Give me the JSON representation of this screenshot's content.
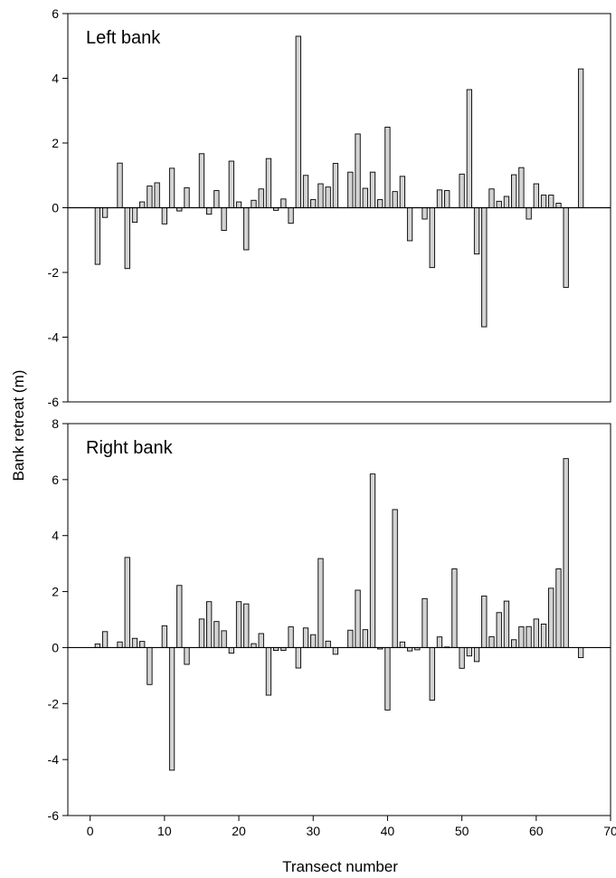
{
  "chart_data": [
    {
      "type": "bar",
      "panel_label": "Left bank",
      "ylim": [
        -6,
        6
      ],
      "yticks": [
        6,
        4,
        2,
        0,
        -2,
        -4,
        -6
      ],
      "xlim": [
        -3,
        70
      ],
      "bar_fill": "#d3d3d3",
      "bar_stroke": "#000000",
      "x": [
        1,
        2,
        4,
        5,
        6,
        7,
        8,
        9,
        10,
        11,
        12,
        13,
        15,
        16,
        17,
        18,
        19,
        20,
        21,
        22,
        23,
        24,
        25,
        26,
        27,
        28,
        29,
        30,
        31,
        32,
        33,
        35,
        36,
        37,
        38,
        39,
        40,
        41,
        42,
        43,
        45,
        46,
        47,
        48,
        50,
        51,
        52,
        53,
        54,
        55,
        56,
        57,
        58,
        59,
        60,
        61,
        62,
        63,
        64,
        66
      ],
      "values": [
        -1.75,
        -0.3,
        1.38,
        -1.88,
        -0.45,
        0.18,
        0.67,
        0.77,
        -0.5,
        1.22,
        -0.1,
        0.62,
        1.67,
        -0.2,
        0.53,
        -0.7,
        1.44,
        0.18,
        -1.3,
        0.23,
        0.58,
        1.52,
        -0.08,
        0.27,
        -0.48,
        5.3,
        1.0,
        0.25,
        0.74,
        0.64,
        1.37,
        1.1,
        2.28,
        0.6,
        1.1,
        0.25,
        2.49,
        0.5,
        0.97,
        -1.02,
        -0.35,
        -1.85,
        0.55,
        0.53,
        1.04,
        3.65,
        -1.43,
        -3.68,
        0.58,
        0.2,
        0.35,
        1.02,
        1.24,
        -0.35,
        0.74,
        0.39,
        0.39,
        0.14,
        -2.46,
        4.29
      ]
    },
    {
      "type": "bar",
      "panel_label": "Right bank",
      "ylim": [
        -6,
        8
      ],
      "yticks": [
        8,
        6,
        4,
        2,
        0,
        -2,
        -4,
        -6
      ],
      "xlim": [
        -3,
        70
      ],
      "xticks": [
        0,
        10,
        20,
        30,
        40,
        50,
        60,
        70
      ],
      "bar_fill": "#d3d3d3",
      "bar_stroke": "#000000",
      "x": [
        1,
        2,
        4,
        5,
        6,
        7,
        8,
        10,
        11,
        12,
        13,
        15,
        16,
        17,
        18,
        19,
        20,
        21,
        22,
        23,
        24,
        25,
        26,
        27,
        28,
        29,
        30,
        31,
        32,
        33,
        35,
        36,
        37,
        38,
        39,
        40,
        41,
        42,
        43,
        44,
        45,
        46,
        47,
        48,
        49,
        50,
        51,
        52,
        53,
        54,
        55,
        56,
        57,
        58,
        59,
        60,
        61,
        62,
        63,
        64,
        66
      ],
      "values": [
        0.13,
        0.57,
        0.2,
        3.22,
        0.33,
        0.22,
        -1.32,
        0.78,
        -4.38,
        2.22,
        -0.6,
        1.02,
        1.64,
        0.93,
        0.6,
        -0.2,
        1.64,
        1.56,
        0.14,
        0.5,
        -1.7,
        -0.1,
        -0.1,
        0.74,
        -0.73,
        0.7,
        0.46,
        3.18,
        0.23,
        -0.24,
        0.62,
        2.05,
        0.64,
        6.2,
        -0.05,
        -2.23,
        4.93,
        0.2,
        -0.12,
        -0.08,
        1.75,
        -1.88,
        0.38,
        0.02,
        2.81,
        -0.74,
        -0.3,
        -0.5,
        1.84,
        0.39,
        1.25,
        1.66,
        0.28,
        0.74,
        0.75,
        1.02,
        0.84,
        2.12,
        2.81,
        6.75,
        -0.36
      ]
    }
  ],
  "labels": {
    "ylabel": "Bank retreat (m)",
    "xlabel": "Transect number"
  }
}
